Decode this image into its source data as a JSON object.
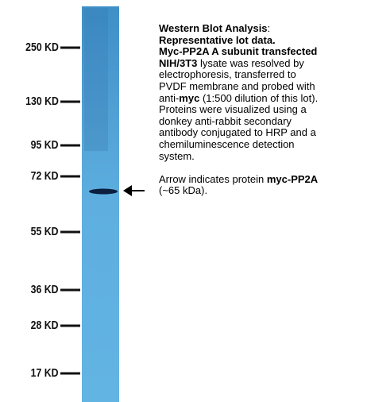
{
  "markers": [
    "250 KD",
    "130 KD",
    "95 KD",
    "72 KD",
    "55 KD",
    "36 KD",
    "28 KD",
    "17 KD"
  ],
  "caption": {
    "lines": [
      [
        "Western Blot Analysis",
        ":"
      ],
      [
        "Representative lot data."
      ],
      [
        "Myc-PP2A A subunit transfected"
      ],
      [
        "NIH/3T3",
        " lysate was resolved by"
      ],
      [
        "electrophoresis, transferred to"
      ],
      [
        "PVDF membrane and probed with"
      ],
      [
        "anti-",
        "myc",
        " (1:500 dilution of this lot)."
      ],
      [
        "Proteins were visualized using a"
      ],
      [
        "donkey anti-rabbit secondary"
      ],
      [
        "antibody conjugated to HRP and a"
      ],
      [
        "chemiluminescence detection"
      ],
      [
        "system."
      ]
    ],
    "note": [
      "Arrow indicates protein ",
      "myc-PP2A",
      "(~65 kDa)."
    ]
  }
}
